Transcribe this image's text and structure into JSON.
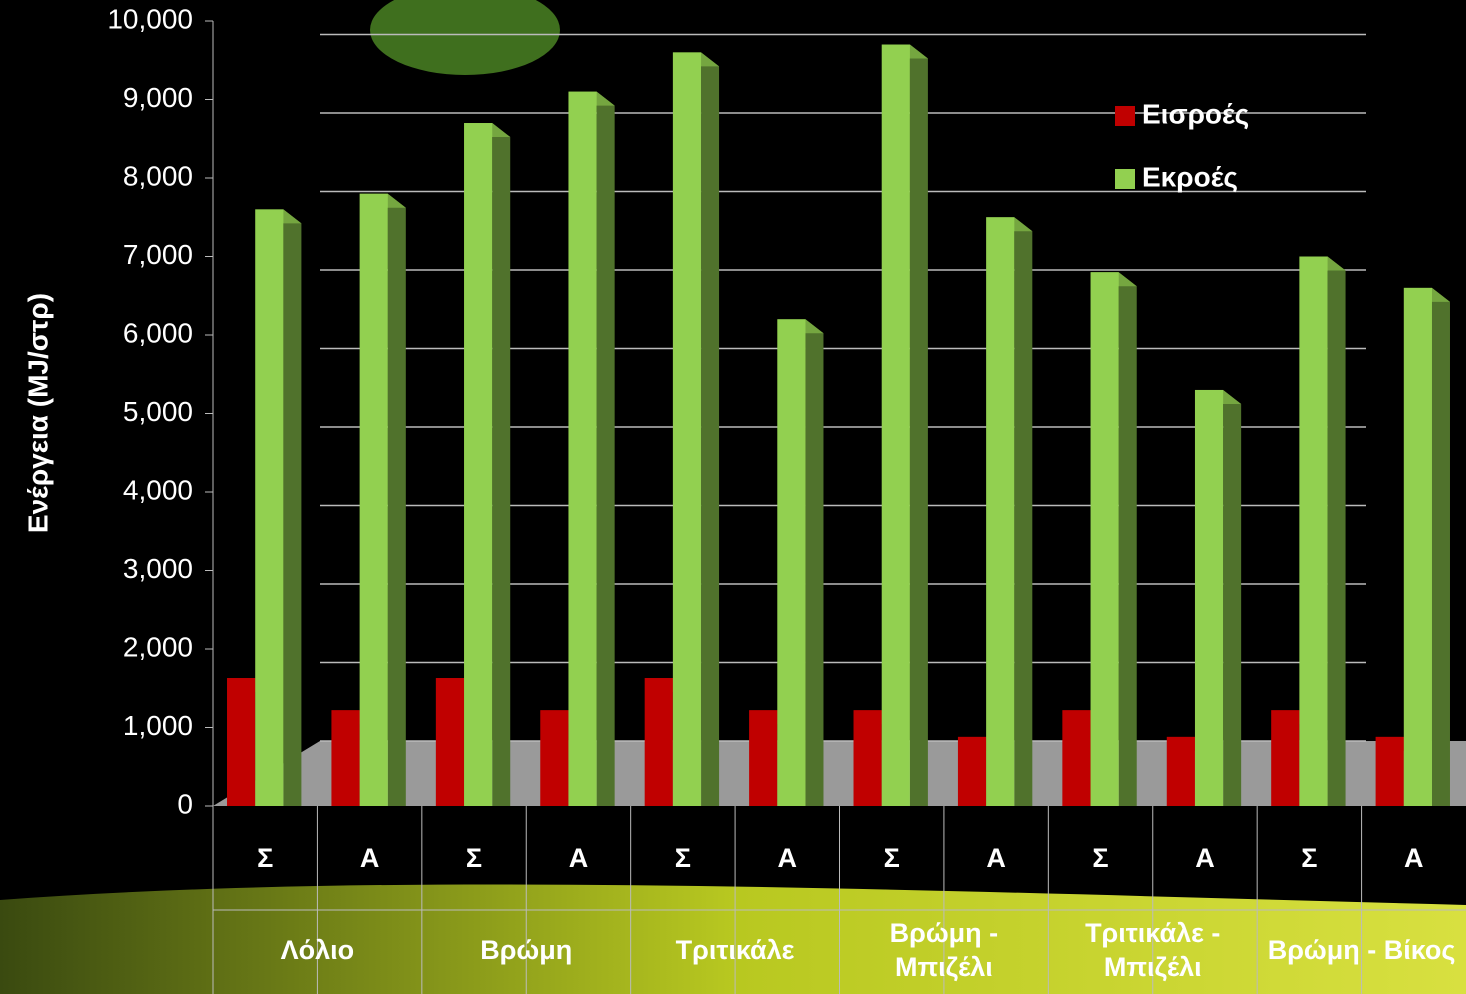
{
  "chart_data": {
    "type": "bar",
    "y_label": "Ενέργεια (MJ/στρ)",
    "categories": [
      "Σ",
      "Α",
      "Σ",
      "Α",
      "Σ",
      "Α",
      "Σ",
      "Α",
      "Σ",
      "Α",
      "Σ",
      "Α"
    ],
    "groups": [
      "Λόλιο",
      "Βρώμη",
      "Τριτικάλε",
      "Βρώμη - Μπιζέλι",
      "Τριτικάλε - Μπιζέλι",
      "Βρώμη - Βίκος"
    ],
    "series": [
      {
        "name": "Εισροές",
        "color": "#c00000",
        "values": [
          1630,
          1220,
          1630,
          1220,
          1630,
          1220,
          1220,
          880,
          1220,
          880,
          1220,
          880
        ]
      },
      {
        "name": "Εκροές",
        "color": "#92d050",
        "values": [
          7600,
          7800,
          8700,
          9100,
          9600,
          6200,
          9700,
          7500,
          6800,
          5300,
          7000,
          6600
        ]
      }
    ],
    "ylim": [
      0,
      10000
    ],
    "yticks": [
      0,
      {
        "value": 1000,
        "label": "1,000"
      },
      {
        "value": 2000,
        "label": "2,000"
      },
      {
        "value": 3000,
        "label": "3,000"
      },
      {
        "value": 4000,
        "label": "4,000"
      },
      {
        "value": 5000,
        "label": "5,000"
      },
      {
        "value": 6000,
        "label": "6,000"
      },
      {
        "value": 7000,
        "label": "7,000"
      },
      {
        "value": 8000,
        "label": "8,000"
      },
      {
        "value": 9000,
        "label": "9,000"
      },
      {
        "value": 10000,
        "label": "10,000"
      }
    ],
    "grid": true,
    "legend": "upper right"
  }
}
